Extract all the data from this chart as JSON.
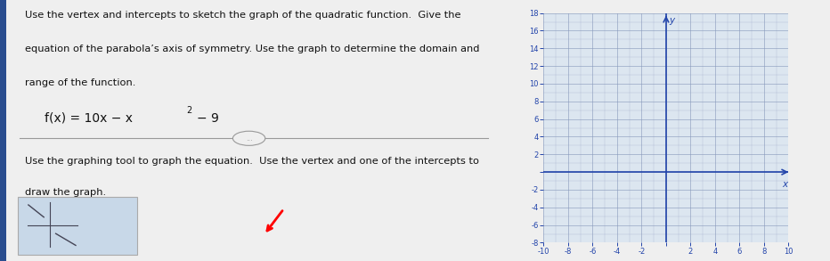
{
  "left_bg_color": "#efefef",
  "right_bg_color": "#dce6f0",
  "grid_color": "#8899bb",
  "axis_color": "#2244aa",
  "text_color": "#111111",
  "title_text1": "Use the vertex and intercepts to sketch the graph of the quadratic function.  Give the",
  "title_text2": "equation of the parabola’s axis of symmetry. Use the graph to determine the domain and",
  "title_text3": "range of the function.",
  "instruction_text1": "Use the graphing tool to graph the equation.  Use the vertex and one of the intercepts to",
  "instruction_text2": "draw the graph.",
  "xmin": -10,
  "xmax": 10,
  "ymin": -8,
  "ymax": 18,
  "xtick_step": 2,
  "ytick_step": 2,
  "button_box_color": "#c8d8e8",
  "button_box_edge": "#aaaaaa",
  "font_size_body": 8.2,
  "font_size_eq": 10,
  "separator_color": "#999999",
  "header_bar_color": "#2a4d8f"
}
